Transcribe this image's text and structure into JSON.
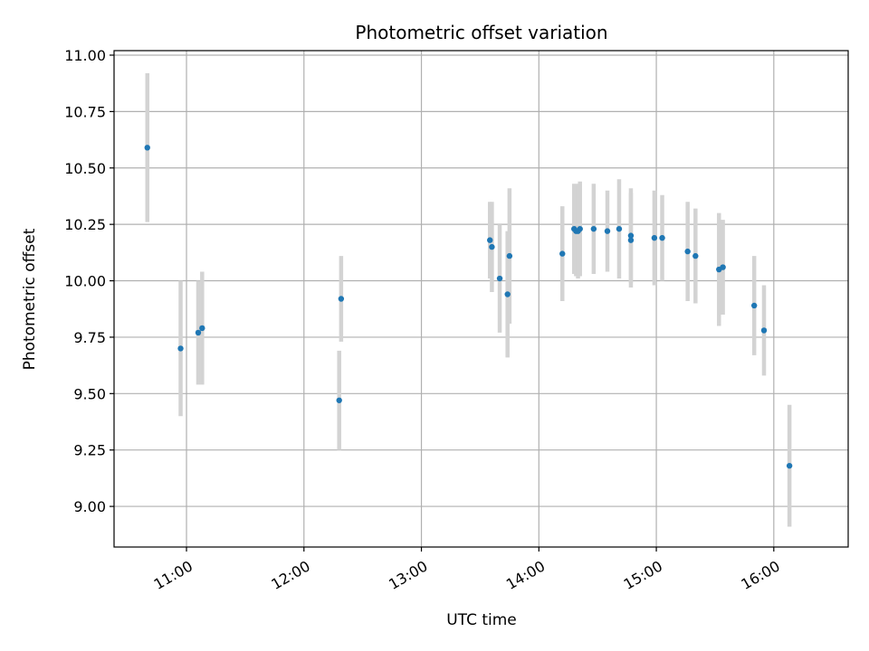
{
  "chart_data": {
    "type": "scatter",
    "title": "Photometric offset variation",
    "xlabel": "UTC time",
    "ylabel": "Photometric offset",
    "x_tick_labels": [
      "11:00",
      "12:00",
      "13:00",
      "14:00",
      "15:00",
      "16:00"
    ],
    "y_tick_labels": [
      "9.00",
      "9.25",
      "9.50",
      "9.75",
      "10.00",
      "10.25",
      "10.50",
      "10.75",
      "11.00"
    ],
    "xlim": [
      "10:23",
      "16:38"
    ],
    "ylim": [
      8.82,
      11.02
    ],
    "grid": true,
    "colors": {
      "marker": "#1f77b4",
      "errorbar": "#d3d3d3",
      "grid": "#b0b0b0"
    },
    "points": [
      {
        "x": "10:40",
        "y": 10.59,
        "err": 0.33
      },
      {
        "x": "10:57",
        "y": 9.7,
        "err": 0.3
      },
      {
        "x": "11:06",
        "y": 9.77,
        "err": 0.23
      },
      {
        "x": "11:08",
        "y": 9.79,
        "err": 0.25
      },
      {
        "x": "12:18",
        "y": 9.47,
        "err": 0.22
      },
      {
        "x": "12:19",
        "y": 9.92,
        "err": 0.19
      },
      {
        "x": "13:35",
        "y": 10.18,
        "err": 0.17
      },
      {
        "x": "13:36",
        "y": 10.15,
        "err": 0.2
      },
      {
        "x": "13:40",
        "y": 10.01,
        "err": 0.24
      },
      {
        "x": "13:44",
        "y": 9.94,
        "err": 0.28
      },
      {
        "x": "13:45",
        "y": 10.11,
        "err": 0.3
      },
      {
        "x": "14:12",
        "y": 10.12,
        "err": 0.21
      },
      {
        "x": "14:18",
        "y": 10.23,
        "err": 0.2
      },
      {
        "x": "14:19",
        "y": 10.22,
        "err": 0.2
      },
      {
        "x": "14:20",
        "y": 10.22,
        "err": 0.21
      },
      {
        "x": "14:21",
        "y": 10.23,
        "err": 0.21
      },
      {
        "x": "14:28",
        "y": 10.23,
        "err": 0.2
      },
      {
        "x": "14:35",
        "y": 10.22,
        "err": 0.18
      },
      {
        "x": "14:41",
        "y": 10.23,
        "err": 0.22
      },
      {
        "x": "14:47",
        "y": 10.2,
        "err": 0.21
      },
      {
        "x": "14:47",
        "y": 10.18,
        "err": 0.21
      },
      {
        "x": "14:59",
        "y": 10.19,
        "err": 0.21
      },
      {
        "x": "15:03",
        "y": 10.19,
        "err": 0.19
      },
      {
        "x": "15:16",
        "y": 10.13,
        "err": 0.22
      },
      {
        "x": "15:20",
        "y": 10.11,
        "err": 0.21
      },
      {
        "x": "15:32",
        "y": 10.05,
        "err": 0.25
      },
      {
        "x": "15:34",
        "y": 10.06,
        "err": 0.21
      },
      {
        "x": "15:50",
        "y": 9.89,
        "err": 0.22
      },
      {
        "x": "15:55",
        "y": 9.78,
        "err": 0.2
      },
      {
        "x": "16:08",
        "y": 9.18,
        "err": 0.27
      }
    ]
  }
}
